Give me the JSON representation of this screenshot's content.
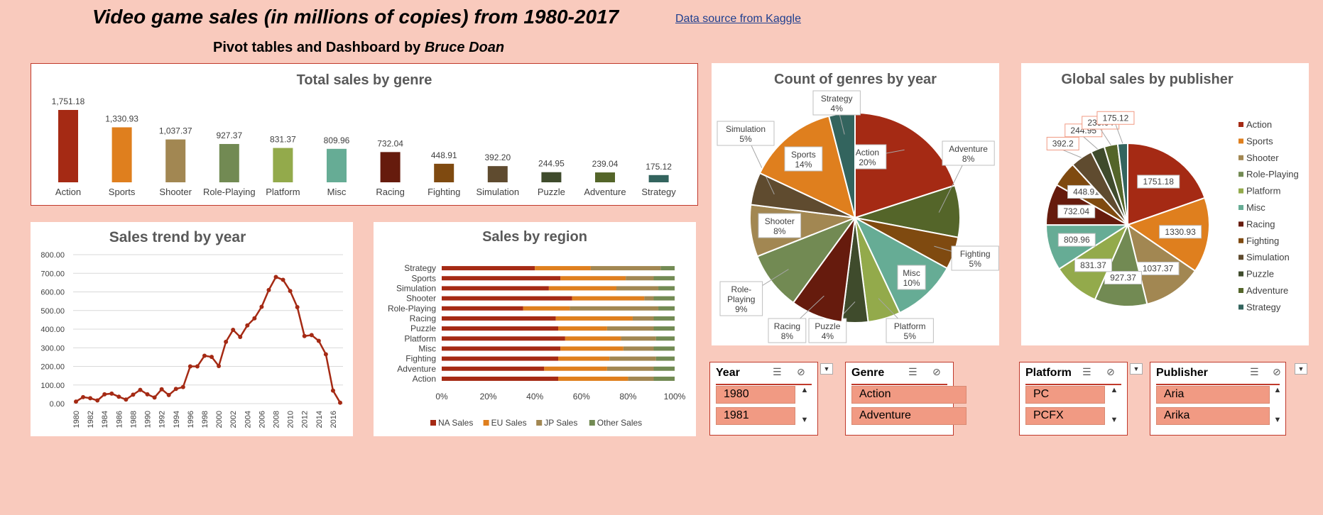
{
  "header": {
    "title": "Video game sales (in millions of copies) from 1980-2017",
    "subtitle_prefix": "Pivot tables and Dashboard by ",
    "subtitle_author": "Bruce Doan",
    "source_link": "Data source from Kaggle"
  },
  "colors": {
    "Action": "#a52a14",
    "Sports": "#df7f1e",
    "Shooter": "#a28752",
    "Role-Playing": "#728a53",
    "Platform": "#93aa4b",
    "Misc": "#66ac95",
    "Racing": "#661b0d",
    "Fighting": "#7f4a10",
    "Simulation": "#5f4b2f",
    "Puzzle": "#3f4b2c",
    "Adventure": "#546529",
    "Strategy": "#33645e",
    "background": "#f9cabd",
    "accent": "#c0392b"
  },
  "chart_data": [
    {
      "type": "bar",
      "title": "Total sales by genre",
      "categories": [
        "Action",
        "Sports",
        "Shooter",
        "Role-Playing",
        "Platform",
        "Misc",
        "Racing",
        "Fighting",
        "Simulation",
        "Puzzle",
        "Adventure",
        "Strategy"
      ],
      "values": [
        1751.18,
        1330.93,
        1037.37,
        927.37,
        831.37,
        809.96,
        732.04,
        448.91,
        392.2,
        244.95,
        239.04,
        175.12
      ],
      "data_labels": [
        "1,751.18",
        "1,330.93",
        "1,037.37",
        "927.37",
        "831.37",
        "809.96",
        "732.04",
        "448.91",
        "392.20",
        "244.95",
        "239.04",
        "175.12"
      ]
    },
    {
      "type": "line",
      "title": "Sales trend by year",
      "x": [
        1980,
        1981,
        1982,
        1983,
        1984,
        1985,
        1986,
        1987,
        1988,
        1989,
        1990,
        1991,
        1992,
        1993,
        1994,
        1995,
        1996,
        1997,
        1998,
        1999,
        2000,
        2001,
        2002,
        2003,
        2004,
        2005,
        2006,
        2007,
        2008,
        2009,
        2010,
        2011,
        2012,
        2013,
        2014,
        2015,
        2016,
        2017
      ],
      "values": [
        11,
        35,
        29,
        17,
        50,
        54,
        37,
        22,
        48,
        74,
        50,
        33,
        77,
        46,
        79,
        89,
        200,
        200,
        257,
        251,
        202,
        332,
        396,
        358,
        420,
        458,
        520,
        610,
        680,
        665,
        605,
        518,
        363,
        368,
        337,
        265,
        70,
        5
      ],
      "x_tick_labels": [
        "1980",
        "1982",
        "1984",
        "1986",
        "1988",
        "1990",
        "1992",
        "1994",
        "1996",
        "1998",
        "2000",
        "2002",
        "2004",
        "2006",
        "2008",
        "2010",
        "2012",
        "2014",
        "2016"
      ],
      "y_tick_labels": [
        "0.00",
        "100.00",
        "200.00",
        "300.00",
        "400.00",
        "500.00",
        "600.00",
        "700.00",
        "800.00"
      ],
      "ylim": [
        0,
        800
      ]
    },
    {
      "type": "bar",
      "orientation": "horizontal-stacked-100",
      "title": "Sales by region",
      "categories": [
        "Action",
        "Adventure",
        "Fighting",
        "Misc",
        "Platform",
        "Puzzle",
        "Racing",
        "Role-Playing",
        "Shooter",
        "Simulation",
        "Sports",
        "Strategy"
      ],
      "series": [
        {
          "name": "NA Sales",
          "color": "#a52a14",
          "values": [
            50,
            44,
            50,
            51,
            53,
            50,
            49,
            35,
            56,
            46,
            51,
            40
          ]
        },
        {
          "name": "EU Sales",
          "color": "#df7f1e",
          "values": [
            30,
            27,
            22,
            27,
            24,
            21,
            33,
            20,
            31,
            29,
            28,
            24
          ]
        },
        {
          "name": "JP Sales",
          "color": "#a28752",
          "values": [
            11,
            20,
            20,
            13,
            15,
            20,
            9,
            38,
            4,
            18,
            12,
            30
          ]
        },
        {
          "name": "Other Sales",
          "color": "#728a53",
          "values": [
            9,
            9,
            8,
            9,
            8,
            9,
            9,
            7,
            9,
            7,
            9,
            6
          ]
        }
      ],
      "x_tick_labels": [
        "0%",
        "20%",
        "40%",
        "60%",
        "80%",
        "100%"
      ]
    },
    {
      "type": "pie",
      "title": "Count of genres by year",
      "slices": [
        {
          "label": "Action",
          "value": 20,
          "text": "20%"
        },
        {
          "label": "Adventure",
          "value": 8,
          "text": "8%"
        },
        {
          "label": "Fighting",
          "value": 5,
          "text": "5%"
        },
        {
          "label": "Misc",
          "value": 10,
          "text": "10%"
        },
        {
          "label": "Platform",
          "value": 5,
          "text": "5%"
        },
        {
          "label": "Puzzle",
          "value": 4,
          "text": "4%"
        },
        {
          "label": "Racing",
          "value": 8,
          "text": "8%"
        },
        {
          "label": "Role-Playing",
          "value": 9,
          "text": "9%"
        },
        {
          "label": "Shooter",
          "value": 8,
          "text": "8%"
        },
        {
          "label": "Simulation",
          "value": 5,
          "text": "5%"
        },
        {
          "label": "Sports",
          "value": 14,
          "text": "14%"
        },
        {
          "label": "Strategy",
          "value": 4,
          "text": "4%"
        }
      ]
    },
    {
      "type": "pie",
      "title": "Global sales by publisher",
      "legend_position": "right",
      "slices": [
        {
          "label": "Action",
          "value": 1751.18,
          "text": "1751.18"
        },
        {
          "label": "Sports",
          "value": 1330.93,
          "text": "1330.93"
        },
        {
          "label": "Shooter",
          "value": 1037.37,
          "text": "1037.37"
        },
        {
          "label": "Role-Playing",
          "value": 927.37,
          "text": "927.37"
        },
        {
          "label": "Platform",
          "value": 831.37,
          "text": "831.37"
        },
        {
          "label": "Misc",
          "value": 809.96,
          "text": "809.96"
        },
        {
          "label": "Racing",
          "value": 732.04,
          "text": "732.04"
        },
        {
          "label": "Fighting",
          "value": 448.91,
          "text": "448.91"
        },
        {
          "label": "Simulation",
          "value": 392.2,
          "text": "392.2"
        },
        {
          "label": "Puzzle",
          "value": 244.95,
          "text": "244.95"
        },
        {
          "label": "Adventure",
          "value": 239.04,
          "text": "239.04"
        },
        {
          "label": "Strategy",
          "value": 175.12,
          "text": "175.12"
        }
      ]
    }
  ],
  "slicers": [
    {
      "title": "Year",
      "items": [
        "1980",
        "1981"
      ]
    },
    {
      "title": "Genre",
      "items": [
        "Action",
        "Adventure"
      ]
    },
    {
      "title": "Platform",
      "items": [
        "PC",
        "PCFX"
      ]
    },
    {
      "title": "Publisher",
      "items": [
        "Aria",
        "Arika"
      ]
    }
  ]
}
